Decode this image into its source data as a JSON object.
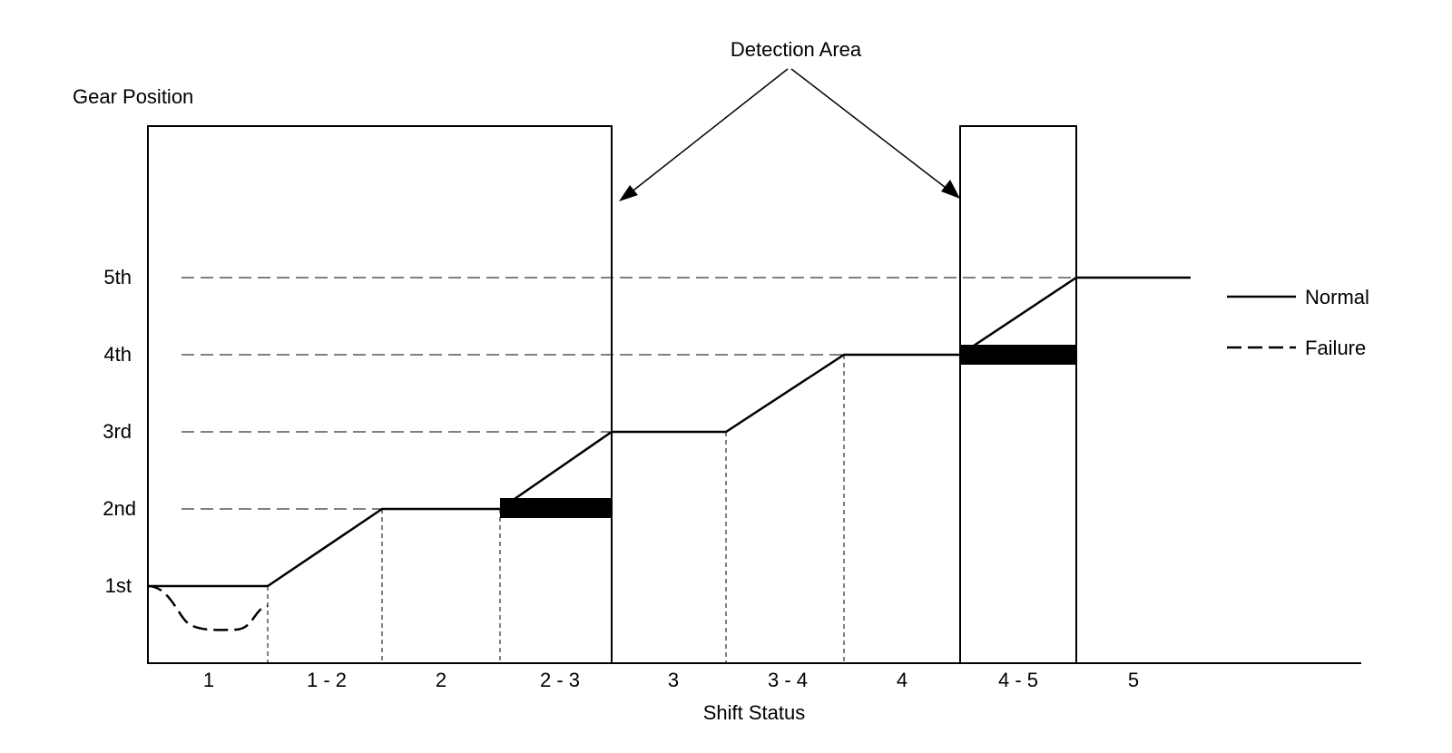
{
  "title": "Detection Area",
  "y_axis_label": "Gear Position",
  "x_axis_label": "Shift Status",
  "gear_levels": [
    "1st",
    "2nd",
    "3rd",
    "4th",
    "5th"
  ],
  "shift_status": [
    "1",
    "1 - 2",
    "2",
    "2 - 3",
    "3",
    "3 - 4",
    "4",
    "4 - 5",
    "5"
  ],
  "legend": {
    "normal": "Normal",
    "failure": "Failure"
  },
  "normal_line": [
    {
      "status": "1",
      "gear": "1st"
    },
    {
      "status": "1 - 2",
      "gear": "1st to 2nd"
    },
    {
      "status": "2",
      "gear": "2nd"
    },
    {
      "status": "2 - 3",
      "gear": "2nd to 3rd"
    },
    {
      "status": "3",
      "gear": "3rd"
    },
    {
      "status": "3 - 4",
      "gear": "3rd to 4th"
    },
    {
      "status": "4",
      "gear": "4th"
    },
    {
      "status": "4 - 5",
      "gear": "4th to 5th"
    },
    {
      "status": "5",
      "gear": "5th"
    }
  ],
  "failure_line": {
    "status": "1",
    "gear": "below 1st"
  },
  "detection_areas": [
    "1 through 2 - 3",
    "4 - 5"
  ],
  "failure_bars": [
    "2nd during 2 - 3",
    "4th during 4 - 5"
  ]
}
